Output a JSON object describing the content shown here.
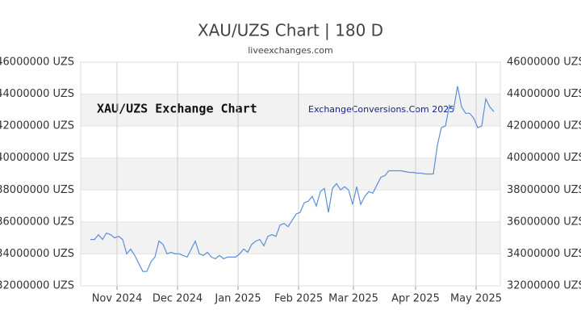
{
  "chart_data": {
    "type": "line",
    "title": "XAU/UZS Chart | 180 D",
    "subtitle": "liveexchanges.com",
    "watermark_left": "XAU/UZS Exchange Chart",
    "watermark_right": "ExchangeConversions.Com 2025",
    "xlim": [
      0,
      100
    ],
    "xticks": [
      {
        "value": 6.6,
        "label": "Nov 2024"
      },
      {
        "value": 21.6,
        "label": "Dec 2024"
      },
      {
        "value": 36.6,
        "label": "Jan 2025"
      },
      {
        "value": 51.6,
        "label": "Feb 2025"
      },
      {
        "value": 65.2,
        "label": "Mar 2025"
      },
      {
        "value": 80.6,
        "label": "Apr 2025"
      },
      {
        "value": 95.6,
        "label": "May 2025"
      }
    ],
    "ylim": [
      32000000,
      46000000
    ],
    "yticks": [
      {
        "value": 46000000,
        "label": "46000000 UZS"
      },
      {
        "value": 44000000,
        "label": "44000000 UZS"
      },
      {
        "value": 42000000,
        "label": "42000000 UZS"
      },
      {
        "value": 40000000,
        "label": "40000000 UZS"
      },
      {
        "value": 38000000,
        "label": "38000000 UZS"
      },
      {
        "value": 36000000,
        "label": "36000000 UZS"
      },
      {
        "value": 34000000,
        "label": "34000000 UZS"
      },
      {
        "value": 32000000,
        "label": "32000000 UZS"
      }
    ],
    "color": "#5b8fd6",
    "band_color": "#f2f2f2",
    "grid": true,
    "values": [
      34900000,
      34900000,
      35200000,
      34900000,
      35300000,
      35200000,
      35000000,
      35100000,
      34900000,
      34000000,
      34300000,
      33900000,
      33400000,
      32900000,
      32900000,
      33500000,
      33800000,
      34800000,
      34600000,
      34000000,
      34100000,
      34000000,
      34000000,
      33900000,
      33800000,
      34300000,
      34800000,
      34000000,
      33900000,
      34100000,
      33800000,
      33700000,
      33900000,
      33700000,
      33800000,
      33800000,
      33800000,
      34000000,
      34300000,
      34100000,
      34600000,
      34800000,
      34900000,
      34500000,
      35100000,
      35200000,
      35100000,
      35800000,
      35900000,
      35700000,
      36100000,
      36500000,
      36600000,
      37200000,
      37300000,
      37600000,
      37000000,
      37900000,
      38100000,
      36600000,
      38100000,
      38400000,
      38000000,
      38200000,
      38000000,
      37100000,
      38200000,
      37100000,
      37600000,
      37900000,
      37800000,
      38300000,
      38800000,
      38900000,
      39200000,
      39200000,
      39200000,
      39200000,
      39150000,
      39100000,
      39100000,
      39050000,
      39050000,
      39000000,
      39000000,
      39000000,
      40800000,
      41900000,
      42000000,
      43300000,
      43000000,
      44500000,
      43200000,
      42800000,
      42800000,
      42500000,
      41900000,
      42000000,
      43700000,
      43200000,
      42900000
    ]
  }
}
